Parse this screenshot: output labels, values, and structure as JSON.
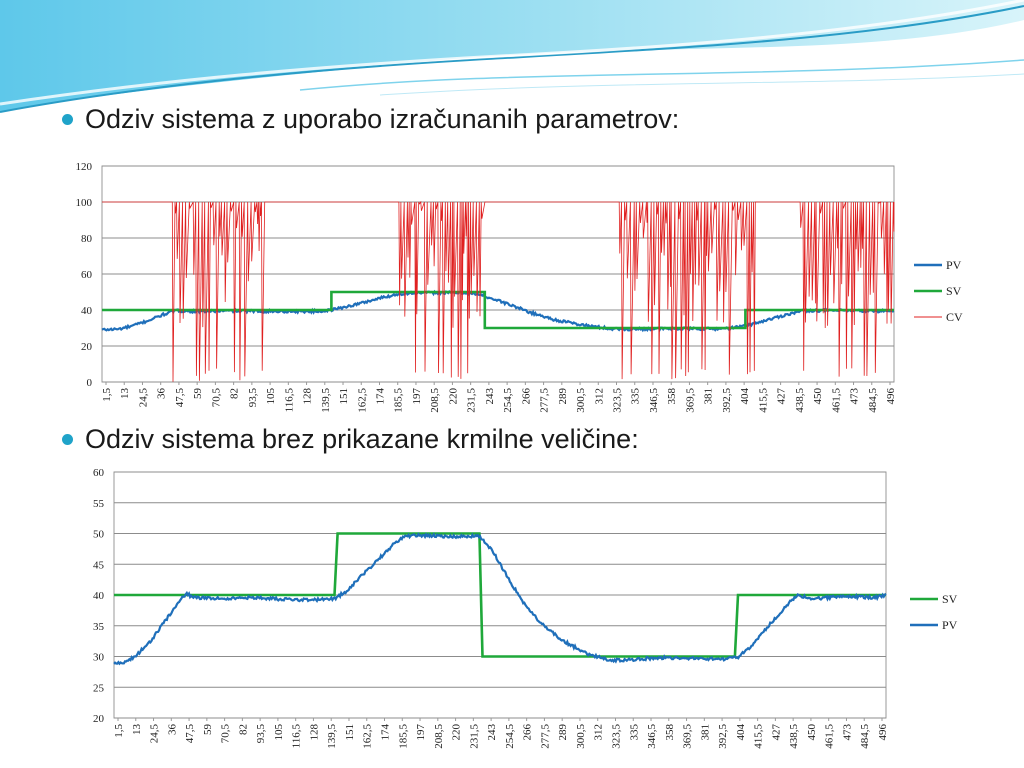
{
  "slide": {
    "bullet1": "Odziv sistema z uporabo izračunanih parametrov:",
    "bullet2": "Odziv sistema brez prikazane krmilne veličine:",
    "accent_color": "#1fa3c9"
  },
  "chart_data": [
    {
      "type": "line",
      "title": "",
      "xlabel": "",
      "ylabel": "",
      "ylim": [
        0,
        120
      ],
      "yticks": [
        0,
        20,
        40,
        60,
        80,
        100,
        120
      ],
      "x_tick_labels": [
        "1,5",
        "13",
        "24,5",
        "36",
        "47,5",
        "59",
        "70,5",
        "82",
        "93,5",
        "105",
        "116,5",
        "128",
        "139,5",
        "151",
        "162,5",
        "174",
        "185,5",
        "197",
        "208,5",
        "220",
        "231,5",
        "243",
        "254,5",
        "266",
        "277,5",
        "289",
        "300,5",
        "312",
        "323,5",
        "335",
        "346,5",
        "358",
        "369,5",
        "381",
        "392,5",
        "404",
        "415,5",
        "427",
        "438,5",
        "450",
        "461,5",
        "473",
        "484,5",
        "496"
      ],
      "x_range": [
        1.5,
        497
      ],
      "grid": true,
      "legend_position": "right",
      "series": [
        {
          "name": "PV",
          "color": "#1f6fba",
          "points": [
            [
              1.5,
              29
            ],
            [
              12,
              29.4
            ],
            [
              20,
              31
            ],
            [
              30,
              34
            ],
            [
              40,
              37.5
            ],
            [
              47,
              39.6
            ],
            [
              52,
              39.5
            ],
            [
              60,
              39.2
            ],
            [
              80,
              39.5
            ],
            [
              100,
              39.3
            ],
            [
              120,
              39.2
            ],
            [
              138,
              39.3
            ],
            [
              145,
              40
            ],
            [
              160,
              43
            ],
            [
              175,
              46.5
            ],
            [
              185,
              48.5
            ],
            [
              192,
              49.3
            ],
            [
              210,
              49.6
            ],
            [
              230,
              49.5
            ],
            [
              240,
              48
            ],
            [
              255,
              43.5
            ],
            [
              270,
              38.5
            ],
            [
              285,
              34.5
            ],
            [
              300,
              32
            ],
            [
              312,
              30.5
            ],
            [
              320,
              29.6
            ],
            [
              330,
              29.3
            ],
            [
              350,
              29.6
            ],
            [
              370,
              29.6
            ],
            [
              385,
              29.5
            ],
            [
              395,
              29.9
            ],
            [
              405,
              31.5
            ],
            [
              420,
              35
            ],
            [
              432,
              38
            ],
            [
              440,
              39.7
            ],
            [
              460,
              39.7
            ],
            [
              480,
              39.4
            ],
            [
              497,
              39.5
            ]
          ]
        },
        {
          "name": "SV",
          "color": "#1fa83a",
          "points": [
            [
              1.5,
              40
            ],
            [
              145,
              40
            ],
            [
              145,
              50
            ],
            [
              241,
              50
            ],
            [
              241,
              30
            ],
            [
              404,
              30
            ],
            [
              404,
              40
            ],
            [
              497,
              40
            ]
          ]
        },
        {
          "name": "CV",
          "color": "#e02020",
          "bursts": [
            [
              45,
              102
            ],
            [
              187,
              241
            ],
            [
              325,
              410
            ],
            [
              436,
              497
            ]
          ],
          "steady": 100
        }
      ]
    },
    {
      "type": "line",
      "title": "",
      "xlabel": "",
      "ylabel": "",
      "ylim": [
        20,
        60
      ],
      "yticks": [
        20,
        25,
        30,
        35,
        40,
        45,
        50,
        55,
        60
      ],
      "x_tick_labels": [
        "1,5",
        "13",
        "24,5",
        "36",
        "47,5",
        "59",
        "70,5",
        "82",
        "93,5",
        "105",
        "116,5",
        "128",
        "139,5",
        "151",
        "162,5",
        "174",
        "185,5",
        "197",
        "208,5",
        "220",
        "231,5",
        "243",
        "254,5",
        "266",
        "277,5",
        "289",
        "300,5",
        "312",
        "323,5",
        "335",
        "346,5",
        "358",
        "369,5",
        "381",
        "392,5",
        "404",
        "415,5",
        "427",
        "438,5",
        "450",
        "461,5",
        "473",
        "484,5",
        "496"
      ],
      "x_range": [
        1.5,
        497
      ],
      "grid": true,
      "legend_position": "right",
      "series": [
        {
          "name": "SV",
          "color": "#1fa83a",
          "points": [
            [
              1.5,
              40
            ],
            [
              143,
              40
            ],
            [
              145,
              50
            ],
            [
              236,
              50
            ],
            [
              238,
              30
            ],
            [
              400,
              30
            ],
            [
              402,
              40
            ],
            [
              497,
              40
            ]
          ]
        },
        {
          "name": "PV",
          "color": "#1f6fba",
          "points": [
            [
              1.5,
              28.8
            ],
            [
              8,
              29
            ],
            [
              15,
              30
            ],
            [
              25,
              32.5
            ],
            [
              35,
              36
            ],
            [
              45,
              39.5
            ],
            [
              48,
              40.3
            ],
            [
              52,
              39.6
            ],
            [
              70,
              39.4
            ],
            [
              90,
              39.6
            ],
            [
              110,
              39.3
            ],
            [
              130,
              39.2
            ],
            [
              143,
              39.4
            ],
            [
              150,
              40.5
            ],
            [
              160,
              43
            ],
            [
              172,
              46
            ],
            [
              182,
              48.5
            ],
            [
              188,
              49.6
            ],
            [
              200,
              49.7
            ],
            [
              215,
              49.5
            ],
            [
              236,
              49.6
            ],
            [
              245,
              47
            ],
            [
              255,
              42.5
            ],
            [
              265,
              38.5
            ],
            [
              275,
              35.5
            ],
            [
              290,
              32.5
            ],
            [
              305,
              30.5
            ],
            [
              320,
              29.4
            ],
            [
              330,
              29.4
            ],
            [
              350,
              29.8
            ],
            [
              370,
              29.7
            ],
            [
              395,
              29.6
            ],
            [
              402,
              29.9
            ],
            [
              410,
              31.5
            ],
            [
              420,
              34.5
            ],
            [
              432,
              38
            ],
            [
              440,
              40
            ],
            [
              450,
              39.4
            ],
            [
              470,
              39.8
            ],
            [
              490,
              39.6
            ],
            [
              497,
              40
            ]
          ]
        }
      ]
    }
  ]
}
